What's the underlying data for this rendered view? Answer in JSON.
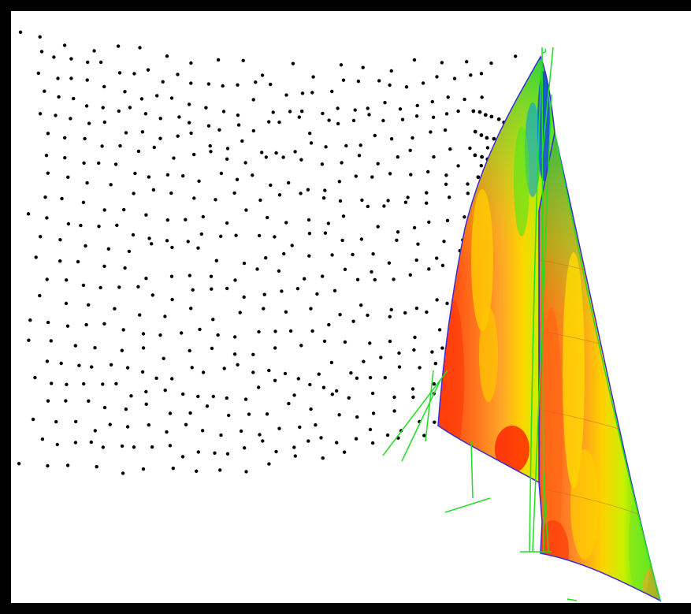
{
  "scene": {
    "background": "#ffffff",
    "frame_color": "#000000",
    "point_color": "#000000",
    "outline_color": "#3a2bd6",
    "rig_color": "#22dd22",
    "colormap": [
      "#ff0000",
      "#ff5a14",
      "#ff8c28",
      "#ffc800",
      "#f5f000",
      "#b4f000",
      "#50e61e",
      "#0ac846",
      "#00a0dc",
      "#0a1ef0"
    ]
  }
}
